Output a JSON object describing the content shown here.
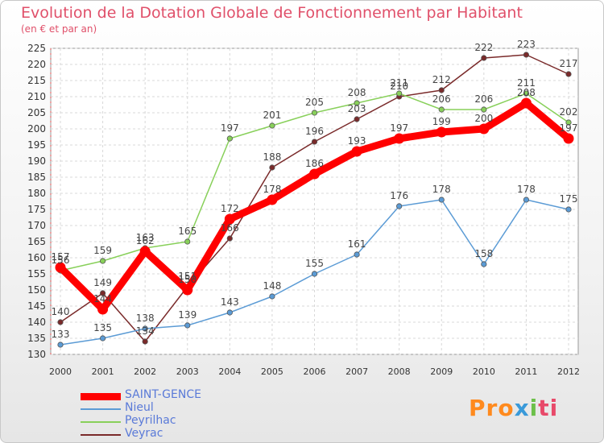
{
  "chart_data": {
    "type": "line",
    "title": "Evolution de la Dotation Globale de Fonctionnement par Habitant",
    "subtitle": "(en € et par an)",
    "x": [
      "2000",
      "2001",
      "2002",
      "2003",
      "2004",
      "2005",
      "2006",
      "2007",
      "2008",
      "2009",
      "2010",
      "2011",
      "2012"
    ],
    "yticks": [
      130,
      135,
      140,
      145,
      150,
      155,
      160,
      165,
      170,
      175,
      180,
      185,
      190,
      195,
      200,
      205,
      210,
      215,
      220,
      225
    ],
    "ylim": [
      130,
      225
    ],
    "grid": true,
    "series": [
      {
        "name": "SAINT-GENCE",
        "color": "#ff0000",
        "values": [
          157,
          144,
          162,
          150,
          172,
          178,
          186,
          193,
          197,
          199,
          200,
          208,
          197
        ]
      },
      {
        "name": "Nieul",
        "color": "#5b9bd5",
        "values": [
          133,
          135,
          138,
          139,
          143,
          148,
          155,
          161,
          176,
          178,
          158,
          178,
          175
        ]
      },
      {
        "name": "Peyrilhac",
        "color": "#88d05a",
        "values": [
          156,
          159,
          163,
          165,
          197,
          201,
          205,
          208,
          211,
          206,
          206,
          211,
          202
        ]
      },
      {
        "name": "Veyrac",
        "color": "#7a2a2a",
        "values": [
          140,
          149,
          134,
          151,
          166,
          188,
          196,
          203,
          210,
          212,
          222,
          223,
          217
        ]
      }
    ]
  },
  "logo": {
    "p1": "Pro",
    "p2": "x",
    "p3": "i",
    "p4": "ti"
  }
}
